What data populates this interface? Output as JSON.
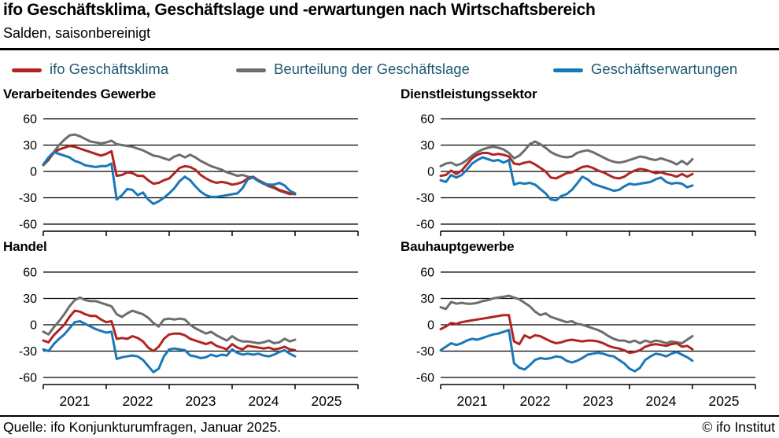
{
  "header": {
    "title": "ifo Geschäftsklima, Geschäftslage und -erwartungen nach Wirtschaftsbereich",
    "subtitle": "Salden, saisonbereinigt"
  },
  "legend": [
    {
      "label": "ifo Geschäftsklima",
      "color": "#b12422"
    },
    {
      "label": "Beurteilung der Geschäftslage",
      "color": "#6d6d6d"
    },
    {
      "label": "Geschäftserwartungen",
      "color": "#1878b8"
    }
  ],
  "footer": {
    "source": "Quelle: ifo Konjunkturumfragen,  Januar 2025.",
    "copyright": "© ifo Institut"
  },
  "theme": {
    "text_accent": "#1d5a74",
    "axis_color": "#000000",
    "background": "#ffffff"
  },
  "chart_data": [
    {
      "type": "line",
      "title": "Verarbeitendes Gewerbe",
      "x_start": "2021-01",
      "x_end": "2025-01",
      "frequency": "monthly",
      "months_span": 60,
      "x_ticks": [
        "2021",
        "2022",
        "2023",
        "2024",
        "2025"
      ],
      "show_x_labels": false,
      "ylim": [
        -60,
        60
      ],
      "yticks": [
        60,
        30,
        0,
        -30,
        -60
      ],
      "grid": true,
      "series": [
        {
          "name": "Beurteilung der Geschäftslage",
          "key": "lage",
          "color": "#6d6d6d",
          "values": [
            7,
            13,
            22,
            30,
            36,
            41,
            42,
            40,
            37,
            34,
            33,
            32,
            33,
            35,
            31,
            30,
            29,
            28,
            26,
            24,
            21,
            18,
            17,
            15,
            13,
            17,
            19,
            16,
            19,
            16,
            12,
            9,
            6,
            4,
            2,
            -1,
            -3,
            -5,
            -4,
            -6,
            -7,
            -11,
            -14,
            -17,
            -19,
            -22,
            -24,
            -26,
            -25
          ]
        },
        {
          "name": "ifo Geschäftsklima",
          "key": "klima",
          "color": "#b12422",
          "values": [
            8,
            14,
            21,
            25,
            27,
            29,
            28,
            26,
            24,
            22,
            20,
            18,
            20,
            23,
            -5,
            -4,
            -1,
            -2,
            -5,
            -5,
            -10,
            -14,
            -13,
            -10,
            -8,
            -2,
            4,
            6,
            5,
            2,
            -4,
            -8,
            -11,
            -13,
            -12,
            -13,
            -15,
            -14,
            -12,
            -8,
            -6,
            -10,
            -13,
            -16,
            -18,
            -21,
            -23,
            -25,
            -26
          ]
        },
        {
          "name": "Geschäftserwartungen",
          "key": "erwartungen",
          "color": "#1878b8",
          "values": [
            8,
            16,
            22,
            20,
            18,
            16,
            12,
            10,
            7,
            6,
            5,
            6,
            6,
            9,
            -32,
            -27,
            -20,
            -21,
            -27,
            -24,
            -32,
            -37,
            -34,
            -30,
            -25,
            -19,
            -11,
            -6,
            -10,
            -17,
            -23,
            -27,
            -29,
            -29,
            -28,
            -27,
            -26,
            -25,
            -19,
            -9,
            -7,
            -11,
            -14,
            -15,
            -15,
            -13,
            -16,
            -22,
            -25
          ]
        }
      ]
    },
    {
      "type": "line",
      "title": "Dienstleistungssektor",
      "x_start": "2021-01",
      "x_end": "2025-01",
      "frequency": "monthly",
      "months_span": 60,
      "x_ticks": [
        "2021",
        "2022",
        "2023",
        "2024",
        "2025"
      ],
      "show_x_labels": false,
      "ylim": [
        -60,
        60
      ],
      "yticks": [
        60,
        30,
        0,
        -30,
        -60
      ],
      "grid": true,
      "series": [
        {
          "name": "Beurteilung der Geschäftslage",
          "key": "lage",
          "color": "#6d6d6d",
          "values": [
            6,
            9,
            10,
            7,
            9,
            13,
            18,
            22,
            25,
            27,
            28,
            27,
            25,
            21,
            15,
            18,
            24,
            31,
            34,
            31,
            27,
            22,
            19,
            17,
            16,
            17,
            21,
            23,
            24,
            22,
            19,
            16,
            13,
            11,
            10,
            11,
            13,
            15,
            17,
            16,
            14,
            13,
            15,
            13,
            11,
            8,
            12,
            8,
            14
          ]
        },
        {
          "name": "ifo Geschäftsklima",
          "key": "klima",
          "color": "#b12422",
          "values": [
            -5,
            -4,
            1,
            -3,
            1,
            8,
            15,
            19,
            21,
            21,
            19,
            20,
            19,
            17,
            9,
            8,
            10,
            11,
            8,
            4,
            0,
            -7,
            -8,
            -5,
            -2,
            -1,
            2,
            5,
            6,
            4,
            1,
            -1,
            -4,
            -7,
            -8,
            -6,
            -2,
            1,
            3,
            2,
            0,
            -2,
            -1,
            -3,
            -4,
            -6,
            -3,
            -6,
            -3
          ]
        },
        {
          "name": "Geschäftserwartungen",
          "key": "erwartungen",
          "color": "#1878b8",
          "values": [
            -10,
            -12,
            -4,
            -7,
            -4,
            2,
            9,
            13,
            16,
            14,
            12,
            13,
            10,
            13,
            -15,
            -13,
            -14,
            -13,
            -15,
            -20,
            -25,
            -32,
            -33,
            -28,
            -26,
            -21,
            -14,
            -6,
            -9,
            -14,
            -16,
            -18,
            -20,
            -22,
            -21,
            -17,
            -14,
            -15,
            -14,
            -13,
            -12,
            -9,
            -7,
            -12,
            -14,
            -13,
            -14,
            -18,
            -16
          ]
        }
      ]
    },
    {
      "type": "line",
      "title": "Handel",
      "x_start": "2021-01",
      "x_end": "2025-01",
      "frequency": "monthly",
      "months_span": 60,
      "x_ticks": [
        "2021",
        "2022",
        "2023",
        "2024",
        "2025"
      ],
      "show_x_labels": true,
      "ylim": [
        -60,
        60
      ],
      "yticks": [
        60,
        30,
        0,
        -30,
        -60
      ],
      "grid": true,
      "series": [
        {
          "name": "Beurteilung der Geschäftslage",
          "key": "lage",
          "color": "#6d6d6d",
          "values": [
            -8,
            -11,
            -3,
            4,
            12,
            21,
            28,
            31,
            28,
            27,
            27,
            25,
            23,
            21,
            12,
            9,
            13,
            16,
            14,
            12,
            8,
            2,
            -2,
            6,
            7,
            6,
            7,
            6,
            0,
            -4,
            -7,
            -10,
            -8,
            -12,
            -15,
            -18,
            -13,
            -17,
            -19,
            -19,
            -20,
            -21,
            -20,
            -18,
            -21,
            -20,
            -16,
            -19,
            -17
          ]
        },
        {
          "name": "ifo Geschäftsklima",
          "key": "klima",
          "color": "#b12422",
          "values": [
            -18,
            -20,
            -12,
            -6,
            0,
            9,
            16,
            15,
            12,
            10,
            10,
            6,
            3,
            4,
            -16,
            -15,
            -16,
            -13,
            -15,
            -19,
            -26,
            -30,
            -25,
            -16,
            -11,
            -10,
            -10,
            -12,
            -16,
            -18,
            -20,
            -22,
            -20,
            -24,
            -26,
            -28,
            -22,
            -26,
            -28,
            -24,
            -25,
            -26,
            -27,
            -26,
            -28,
            -27,
            -25,
            -28,
            -29
          ]
        },
        {
          "name": "Geschäftserwartungen",
          "key": "erwartungen",
          "color": "#1878b8",
          "values": [
            -28,
            -30,
            -22,
            -16,
            -11,
            -4,
            3,
            4,
            1,
            -2,
            -5,
            -7,
            -9,
            -8,
            -39,
            -37,
            -36,
            -35,
            -36,
            -40,
            -47,
            -54,
            -50,
            -36,
            -28,
            -27,
            -28,
            -29,
            -35,
            -36,
            -38,
            -37,
            -34,
            -36,
            -34,
            -35,
            -28,
            -32,
            -34,
            -33,
            -34,
            -33,
            -35,
            -36,
            -34,
            -31,
            -29,
            -33,
            -36
          ]
        }
      ]
    },
    {
      "type": "line",
      "title": "Bauhauptgewerbe",
      "x_start": "2021-01",
      "x_end": "2025-01",
      "frequency": "monthly",
      "months_span": 60,
      "x_ticks": [
        "2021",
        "2022",
        "2023",
        "2024",
        "2025"
      ],
      "show_x_labels": true,
      "ylim": [
        -60,
        60
      ],
      "yticks": [
        60,
        30,
        0,
        -30,
        -60
      ],
      "grid": true,
      "series": [
        {
          "name": "Beurteilung der Geschäftslage",
          "key": "lage",
          "color": "#6d6d6d",
          "values": [
            20,
            18,
            26,
            24,
            25,
            24,
            24,
            25,
            27,
            28,
            30,
            31,
            32,
            33,
            31,
            29,
            25,
            21,
            15,
            11,
            13,
            9,
            7,
            5,
            3,
            4,
            1,
            0,
            -2,
            -4,
            -6,
            -9,
            -13,
            -16,
            -18,
            -18,
            -20,
            -18,
            -21,
            -18,
            -20,
            -18,
            -19,
            -21,
            -19,
            -20,
            -21,
            -17,
            -13
          ]
        },
        {
          "name": "ifo Geschäftsklima",
          "key": "klima",
          "color": "#b12422",
          "values": [
            -5,
            -2,
            2,
            1,
            3,
            4,
            5,
            6,
            7,
            8,
            9,
            10,
            11,
            11,
            -19,
            -22,
            -12,
            -15,
            -12,
            -13,
            -16,
            -19,
            -21,
            -20,
            -18,
            -17,
            -18,
            -19,
            -18,
            -18,
            -19,
            -21,
            -24,
            -26,
            -27,
            -29,
            -32,
            -31,
            -29,
            -25,
            -23,
            -22,
            -23,
            -24,
            -22,
            -21,
            -25,
            -24,
            -28
          ]
        },
        {
          "name": "Geschäftserwartungen",
          "key": "erwartungen",
          "color": "#1878b8",
          "values": [
            -29,
            -25,
            -21,
            -23,
            -21,
            -18,
            -16,
            -17,
            -15,
            -13,
            -11,
            -10,
            -8,
            -6,
            -44,
            -49,
            -51,
            -46,
            -40,
            -38,
            -39,
            -38,
            -36,
            -37,
            -41,
            -43,
            -41,
            -38,
            -34,
            -33,
            -32,
            -33,
            -35,
            -36,
            -40,
            -44,
            -50,
            -53,
            -49,
            -40,
            -36,
            -33,
            -34,
            -36,
            -33,
            -31,
            -34,
            -37,
            -41
          ]
        }
      ]
    }
  ]
}
